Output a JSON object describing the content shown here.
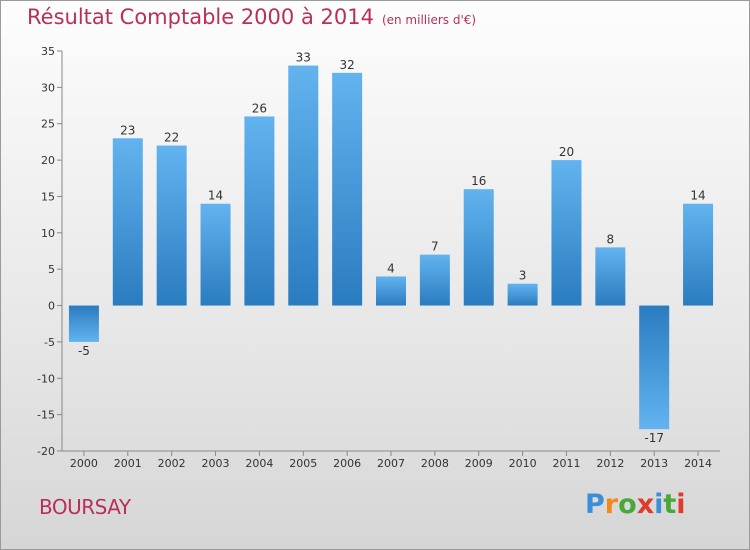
{
  "title": "Résultat Comptable 2000 à 2014",
  "subtitle": "(en milliers d'€)",
  "commune": "BOURSAY",
  "logo": {
    "letters": [
      "P",
      "r",
      "o",
      "x",
      "i",
      "t",
      "i"
    ],
    "colors": [
      "#3a8fd8",
      "#f08a1c",
      "#4aa83a",
      "#e03a2a",
      "#3a8fd8",
      "#4aa83a",
      "#e03a2a"
    ]
  },
  "colors": {
    "bar_light": "#62b3ef",
    "bar_dark": "#2a7cc0",
    "title": "#b8305a"
  },
  "chart_data": {
    "type": "bar",
    "title": "Résultat Comptable 2000 à 2014",
    "ylabel": "en milliers d'€",
    "categories": [
      "2000",
      "2001",
      "2002",
      "2003",
      "2004",
      "2005",
      "2006",
      "2007",
      "2008",
      "2009",
      "2010",
      "2011",
      "2012",
      "2013",
      "2014"
    ],
    "values": [
      -5,
      23,
      22,
      14,
      26,
      33,
      32,
      4,
      7,
      16,
      3,
      20,
      8,
      -17,
      14
    ],
    "ylim": [
      -20,
      35
    ],
    "yticks": [
      35,
      30,
      25,
      20,
      15,
      10,
      5,
      0,
      -5,
      -10,
      -15,
      -20
    ],
    "grid": false
  }
}
